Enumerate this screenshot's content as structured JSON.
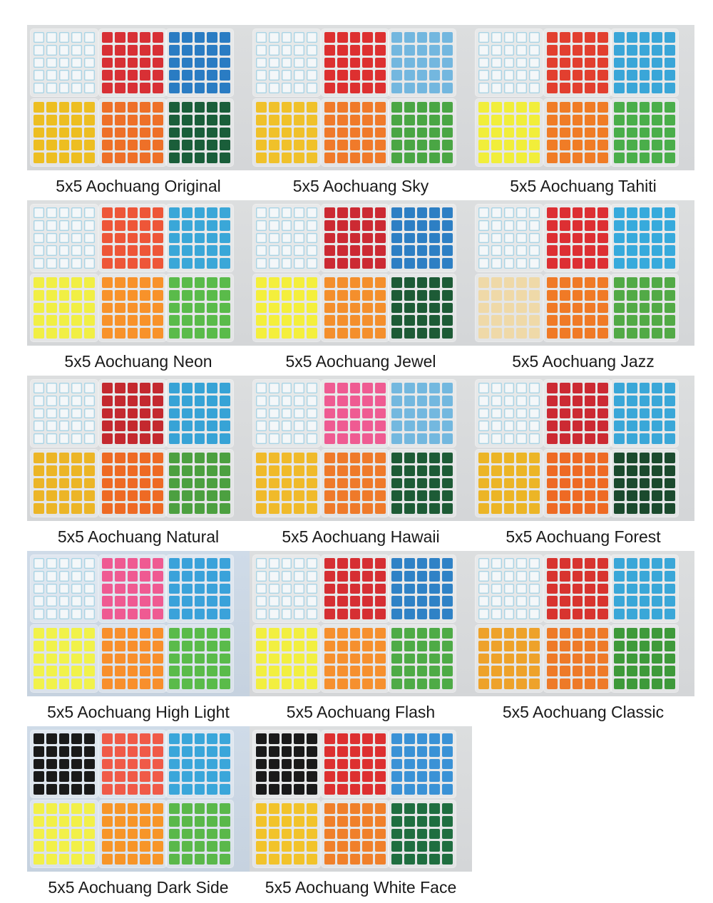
{
  "products": [
    {
      "name": "5x5 Aochuang Original",
      "faces": [
        "white",
        "#d83035",
        "#2a7cc3",
        "#edbe21",
        "#ee7028",
        "#1a5e3a"
      ]
    },
    {
      "name": "5x5 Aochuang Sky",
      "faces": [
        "white",
        "#dd3030",
        "#73b7df",
        "#f0c12a",
        "#f07a2a",
        "#4aa644"
      ]
    },
    {
      "name": "5x5 Aochuang Tahiti",
      "faces": [
        "white",
        "#e23f2f",
        "#3aa6d8",
        "#f1ee3a",
        "#f07c26",
        "#4aae4a"
      ]
    },
    {
      "name": "5x5 Aochuang Neon",
      "faces": [
        "white",
        "#ee5638",
        "#3aa7d8",
        "#f1ef44",
        "#f8922a",
        "#5abb4a"
      ]
    },
    {
      "name": "5x5 Aochuang Jewel",
      "faces": [
        "white",
        "#cc2a33",
        "#2d7fc4",
        "#f4ef3c",
        "#f48f2c",
        "#1d5b36"
      ]
    },
    {
      "name": "5x5 Aochuang Jazz",
      "faces": [
        "white",
        "#dd2f33",
        "#37aadc",
        "#efd9a8",
        "#f07a26",
        "#52aa46"
      ]
    },
    {
      "name": "5x5 Aochuang Natural",
      "faces": [
        "white",
        "#c4292f",
        "#37a3d6",
        "#ecb526",
        "#ee6a24",
        "#4ca040"
      ]
    },
    {
      "name": "5x5 Aochuang Hawaii",
      "faces": [
        "white",
        "#ef5b92",
        "#73b8df",
        "#f0ba2a",
        "#ef7a2a",
        "#1d5b36"
      ]
    },
    {
      "name": "5x5 Aochuang Forest",
      "faces": [
        "white",
        "#cc2a33",
        "#3aa7d8",
        "#ecb526",
        "#ee6a24",
        "#1b4a2e"
      ]
    },
    {
      "name": "5x5 Aochuang High Light",
      "faces": [
        "white",
        "#ef5a92",
        "#3aa2da",
        "#f1f24a",
        "#f88f2c",
        "#5abb4a"
      ]
    },
    {
      "name": "5x5 Aochuang Flash",
      "faces": [
        "white",
        "#d62f33",
        "#2f82c6",
        "#f2ef40",
        "#f6902e",
        "#4eab46"
      ]
    },
    {
      "name": "5x5 Aochuang Classic",
      "faces": [
        "white",
        "#d8342f",
        "#3aa7d8",
        "#eea22a",
        "#ee7a28",
        "#3e9a3a"
      ]
    },
    {
      "name": "5x5 Aochuang Dark Side",
      "faces": [
        "#1a1a1a",
        "#f05a48",
        "#3aa6da",
        "#f2f048",
        "#f79528",
        "#5ab84a"
      ]
    },
    {
      "name": "5x5 Aochuang White Face",
      "faces": [
        "#1a1a1a",
        "#dd3030",
        "#3a92d6",
        "#f2c32a",
        "#f0802a",
        "#1f6e40"
      ]
    }
  ]
}
